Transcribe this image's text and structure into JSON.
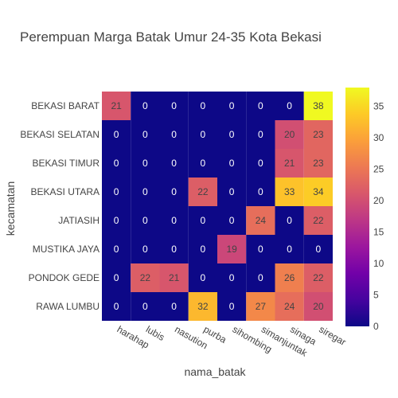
{
  "chart_data": {
    "type": "heatmap",
    "title": "Perempuan Marga Batak Umur 24-35 Kota Bekasi",
    "xlabel": "nama_batak",
    "ylabel": "kecamatan",
    "x": [
      "harahap",
      "lubis",
      "nasution",
      "purba",
      "sihombing",
      "simanjuntak",
      "sinaga",
      "siregar"
    ],
    "y": [
      "BEKASI BARAT",
      "BEKASI SELATAN",
      "BEKASI TIMUR",
      "BEKASI UTARA",
      "JATIASIH",
      "MUSTIKA JAYA",
      "PONDOK GEDE",
      "RAWA LUMBU"
    ],
    "z": [
      [
        21,
        0,
        0,
        0,
        0,
        0,
        0,
        38
      ],
      [
        0,
        0,
        0,
        0,
        0,
        0,
        20,
        23
      ],
      [
        0,
        0,
        0,
        0,
        0,
        0,
        21,
        23
      ],
      [
        0,
        0,
        0,
        22,
        0,
        0,
        33,
        34
      ],
      [
        0,
        0,
        0,
        0,
        0,
        24,
        0,
        22
      ],
      [
        0,
        0,
        0,
        0,
        19,
        0,
        0,
        0
      ],
      [
        0,
        22,
        21,
        0,
        0,
        0,
        26,
        22
      ],
      [
        0,
        0,
        0,
        32,
        0,
        27,
        24,
        20
      ]
    ],
    "zrange": [
      0,
      38
    ],
    "colorbar_ticks": [
      0,
      5,
      10,
      15,
      20,
      25,
      30,
      35
    ],
    "colorscale": [
      "#0d0887",
      "#46039f",
      "#7201a8",
      "#9c179e",
      "#bd3786",
      "#d8576b",
      "#ed7953",
      "#fb9f3a",
      "#fdca26",
      "#f0f921"
    ]
  }
}
